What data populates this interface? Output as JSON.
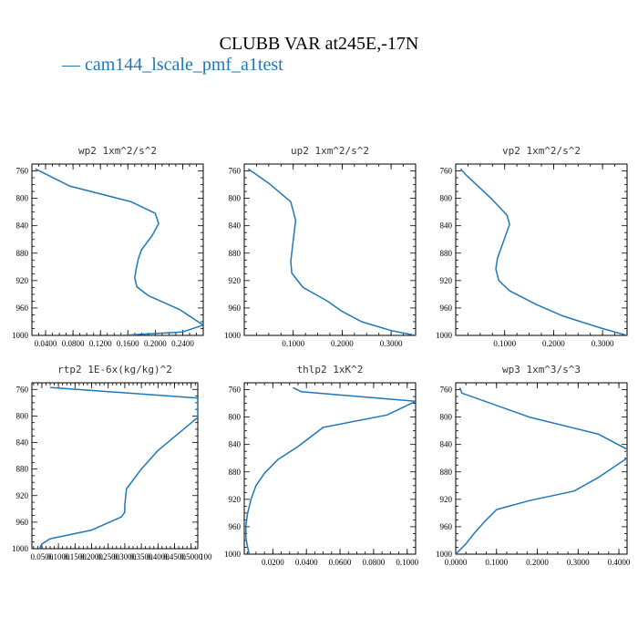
{
  "title": "CLUBB VAR at245E,-17N",
  "legend": {
    "label": "— cam144_lscale_pmf_a1test"
  },
  "colors": {
    "series": "#1f77b4",
    "axes": "#000000"
  },
  "chart_data": [
    {
      "type": "line",
      "title": "wp2   1xm^2/s^2",
      "ylim": [
        1000,
        750
      ],
      "y_ticks": [
        760,
        800,
        840,
        880,
        920,
        960,
        1000
      ],
      "xlim": [
        0.02,
        0.27
      ],
      "x_ticks": [
        0.04,
        0.08,
        0.12,
        0.16,
        0.2,
        0.24
      ],
      "x_tick_labels": [
        "0.0400",
        "0.0800",
        "0.1200",
        "0.1600",
        "0.2000",
        "0.2400"
      ],
      "series": [
        {
          "x": [
            0.025,
            0.075,
            0.165,
            0.2,
            0.205,
            0.195,
            0.18,
            0.175,
            0.172,
            0.17,
            0.173,
            0.19,
            0.235,
            0.27,
            0.24,
            0.15
          ],
          "y": [
            757,
            782,
            805,
            822,
            837,
            855,
            875,
            889,
            904,
            916,
            929,
            942,
            962,
            985,
            995,
            1000
          ]
        }
      ]
    },
    {
      "type": "line",
      "title": "up2   1xm^2/s^2",
      "ylim": [
        1000,
        750
      ],
      "y_ticks": [
        760,
        800,
        840,
        880,
        920,
        960,
        1000
      ],
      "xlim": [
        0.0,
        0.35
      ],
      "x_ticks": [
        0.1,
        0.2,
        0.3
      ],
      "x_tick_labels": [
        "0.1000",
        "0.2000",
        "0.3000"
      ],
      "series": [
        {
          "x": [
            0.008,
            0.05,
            0.095,
            0.105,
            0.1,
            0.095,
            0.097,
            0.12,
            0.17,
            0.2,
            0.24,
            0.3,
            0.35
          ],
          "y": [
            757,
            778,
            805,
            832,
            862,
            892,
            909,
            930,
            950,
            965,
            980,
            993,
            1000
          ]
        }
      ]
    },
    {
      "type": "line",
      "title": "vp2   1xm^2/s^2",
      "ylim": [
        1000,
        750
      ],
      "y_ticks": [
        760,
        800,
        840,
        880,
        920,
        960,
        1000
      ],
      "xlim": [
        0.0,
        0.35
      ],
      "x_ticks": [
        0.1,
        0.2,
        0.3
      ],
      "x_tick_labels": [
        "0.1000",
        "0.2000",
        "0.3000"
      ],
      "series": [
        {
          "x": [
            0.01,
            0.02,
            0.075,
            0.105,
            0.11,
            0.095,
            0.085,
            0.082,
            0.088,
            0.11,
            0.165,
            0.22,
            0.3,
            0.35
          ],
          "y": [
            757,
            765,
            802,
            825,
            838,
            868,
            888,
            903,
            920,
            935,
            955,
            972,
            990,
            1000
          ]
        }
      ]
    },
    {
      "type": "line",
      "title": "rtp2   1E-6x(kg/kg)^2",
      "ylim": [
        1000,
        750
      ],
      "y_ticks": [
        760,
        800,
        840,
        880,
        920,
        960,
        1000
      ],
      "xlim": [
        0.02,
        0.52
      ],
      "x_ticks": [
        0.05,
        0.1,
        0.15,
        0.2,
        0.25,
        0.3,
        0.35,
        0.4,
        0.45,
        0.5
      ],
      "x_tick_labels": [
        "0.0500",
        "0.1000",
        "0.1500",
        "0.2000",
        "0.2500",
        "0.3000",
        "0.3500",
        "0.4000",
        "0.4500",
        "0.5000"
      ],
      "x_tick_label_suffix": "100",
      "series": [
        {
          "x": [
            0.075,
            0.52,
            0.52,
            0.4,
            0.35,
            0.305,
            0.3,
            0.3,
            0.29,
            0.2,
            0.075,
            0.05,
            0.045,
            0.043
          ],
          "y": [
            757,
            773,
            802,
            852,
            880,
            910,
            935,
            945,
            952,
            972,
            985,
            993,
            998,
            1000
          ]
        }
      ]
    },
    {
      "type": "line",
      "title": "thlp2   1xK^2",
      "ylim": [
        1000,
        750
      ],
      "y_ticks": [
        760,
        800,
        840,
        880,
        920,
        960,
        1000
      ],
      "xlim": [
        0.003,
        0.105
      ],
      "x_ticks": [
        0.02,
        0.04,
        0.06,
        0.08,
        0.1
      ],
      "x_tick_labels": [
        "0.0200",
        "0.0400",
        "0.0600",
        "0.0800",
        "0.1000"
      ],
      "series": [
        {
          "x": [
            0.032,
            0.037,
            0.105,
            0.088,
            0.05,
            0.035,
            0.023,
            0.015,
            0.01,
            0.007,
            0.005,
            0.004,
            0.004,
            0.005,
            0.006
          ],
          "y": [
            757,
            763,
            777,
            797,
            815,
            843,
            862,
            882,
            900,
            920,
            940,
            958,
            976,
            990,
            1000
          ]
        }
      ]
    },
    {
      "type": "line",
      "title": "wp3   1xm^3/s^3",
      "ylim": [
        1000,
        750
      ],
      "y_ticks": [
        760,
        800,
        840,
        880,
        920,
        960,
        1000
      ],
      "xlim": [
        0.0,
        0.42
      ],
      "x_ticks": [
        0.0,
        0.1,
        0.2,
        0.3,
        0.4
      ],
      "x_tick_labels": [
        "0.0000",
        "0.1000",
        "0.2000",
        "0.3000",
        "0.4000"
      ],
      "series": [
        {
          "x": [
            0.01,
            0.015,
            0.18,
            0.35,
            0.42,
            0.42,
            0.35,
            0.29,
            0.18,
            0.1,
            0.07,
            0.045,
            0.025,
            0.0
          ],
          "y": [
            757,
            765,
            800,
            825,
            847,
            860,
            888,
            908,
            922,
            935,
            953,
            970,
            985,
            1000
          ]
        }
      ]
    }
  ]
}
